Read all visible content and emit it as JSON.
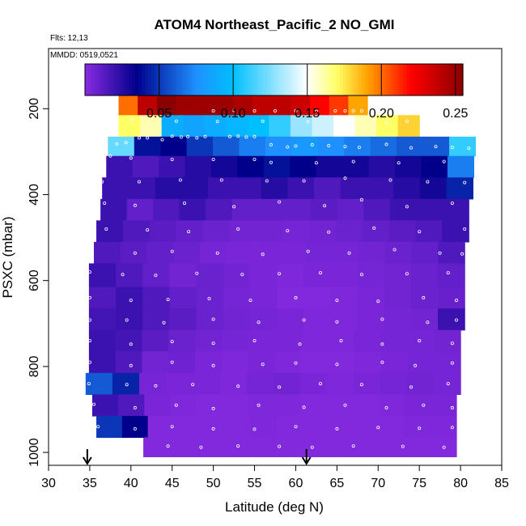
{
  "chart_data": {
    "type": "heatmap",
    "title": "ATOM4 Northeast_Pacific_2 NO_GMI",
    "flights_text": "Flts: 12,13",
    "dates_text": "MMDD: 0519,0521",
    "xlabel": "Latitude (deg N)",
    "ylabel": "PSXC (mbar)",
    "xlim": [
      30,
      85
    ],
    "ylim": [
      1030,
      60
    ],
    "y_reversed": true,
    "x_ticks": [
      "30",
      "35",
      "40",
      "45",
      "50",
      "55",
      "60",
      "65",
      "70",
      "75",
      "80",
      "85"
    ],
    "y_ticks": [
      "200",
      "400",
      "600",
      "800",
      "1000"
    ],
    "colorbar": {
      "min": 0.0,
      "max": 0.255,
      "ticks": [
        "0.05",
        "0.10",
        "0.15",
        "0.20",
        "0.25"
      ],
      "colors": [
        "#8a2be2",
        "#00008b",
        "#1e90ff",
        "#00bfff",
        "#ffffff",
        "#ffff66",
        "#ffa500",
        "#ff0000",
        "#8b0000"
      ]
    },
    "arrows_latitude": [
      34.7,
      61.3
    ],
    "layers": [
      {
        "p_top": 170,
        "p_bot": 215,
        "lat_min": 38.5,
        "lat_max": 68.7,
        "values": [
          0.2,
          0.24,
          0.255,
          0.25,
          0.25,
          0.25,
          0.245,
          0.24,
          0.24,
          0.235,
          0.22,
          0.21,
          0.19
        ]
      },
      {
        "p_top": 215,
        "p_bot": 265,
        "lat_min": 38.5,
        "lat_max": 75.0,
        "values": [
          0.17,
          0.16,
          0.09,
          0.085,
          0.09,
          0.095,
          0.1,
          0.11,
          0.13,
          0.14,
          0.15,
          0.16,
          0.17,
          0.18
        ]
      },
      {
        "p_top": 265,
        "p_bot": 310,
        "lat_min": 37.2,
        "lat_max": 81.8,
        "values": [
          0.12,
          0.04,
          0.035,
          0.05,
          0.06,
          0.07,
          0.075,
          0.08,
          0.075,
          0.07,
          0.065,
          0.06,
          0.06,
          0.11
        ]
      },
      {
        "p_top": 310,
        "p_bot": 360,
        "lat_min": 37.0,
        "lat_max": 81.6,
        "values": [
          0.02,
          0.015,
          0.02,
          0.025,
          0.03,
          0.035,
          0.04,
          0.035,
          0.03,
          0.03,
          0.025,
          0.03,
          0.035,
          0.07
        ]
      },
      {
        "p_top": 360,
        "p_bot": 410,
        "lat_min": 36.5,
        "lat_max": 81.5,
        "values": [
          0.02,
          0.02,
          0.025,
          0.025,
          0.02,
          0.02,
          0.025,
          0.02,
          0.015,
          0.02,
          0.02,
          0.025,
          0.03,
          0.045
        ]
      },
      {
        "p_top": 410,
        "p_bot": 460,
        "lat_min": 36.3,
        "lat_max": 81.0,
        "values": [
          0.02,
          0.01,
          0.015,
          0.02,
          0.015,
          0.01,
          0.01,
          0.01,
          0.012,
          0.01,
          0.015,
          0.02,
          0.02,
          0.02
        ]
      },
      {
        "p_top": 460,
        "p_bot": 510,
        "lat_min": 35.8,
        "lat_max": 81.0,
        "values": [
          0.02,
          0.015,
          0.012,
          0.01,
          0.008,
          0.006,
          0.006,
          0.005,
          0.006,
          0.008,
          0.01,
          0.012,
          0.015,
          0.02
        ]
      },
      {
        "p_top": 510,
        "p_bot": 560,
        "lat_min": 35.5,
        "lat_max": 80.5,
        "values": [
          0.015,
          0.012,
          0.01,
          0.008,
          0.005,
          0.004,
          0.004,
          0.004,
          0.005,
          0.005,
          0.006,
          0.008,
          0.01,
          0.015
        ]
      },
      {
        "p_top": 560,
        "p_bot": 615,
        "lat_min": 34.9,
        "lat_max": 80.5,
        "values": [
          0.02,
          0.015,
          0.01,
          0.006,
          0.008,
          0.006,
          0.004,
          0.003,
          0.004,
          0.004,
          0.005,
          0.006,
          0.008,
          0.01
        ]
      },
      {
        "p_top": 615,
        "p_bot": 665,
        "lat_min": 34.9,
        "lat_max": 80.5,
        "values": [
          0.015,
          0.02,
          0.015,
          0.01,
          0.008,
          0.005,
          0.004,
          0.002,
          0.002,
          0.003,
          0.004,
          0.006,
          0.008,
          0.009
        ]
      },
      {
        "p_top": 665,
        "p_bot": 715,
        "lat_min": 34.9,
        "lat_max": 80.5,
        "values": [
          0.018,
          0.02,
          0.015,
          0.012,
          0.008,
          0.006,
          0.005,
          0.004,
          0.003,
          0.003,
          0.004,
          0.005,
          0.006,
          0.02
        ]
      },
      {
        "p_top": 715,
        "p_bot": 765,
        "lat_min": 34.9,
        "lat_max": 80.0,
        "values": [
          0.02,
          0.018,
          0.012,
          0.008,
          0.006,
          0.005,
          0.004,
          0.004,
          0.003,
          0.003,
          0.004,
          0.005,
          0.005,
          0.006
        ]
      },
      {
        "p_top": 765,
        "p_bot": 815,
        "lat_min": 34.9,
        "lat_max": 80.0,
        "values": [
          0.02,
          0.015,
          0.006,
          0.007,
          0.004,
          0.003,
          0.004,
          0.003,
          0.002,
          0.002,
          0.003,
          0.004,
          0.005,
          0.005
        ]
      },
      {
        "p_top": 815,
        "p_bot": 865,
        "lat_min": 34.5,
        "lat_max": 80.0,
        "values": [
          0.06,
          0.045,
          0.005,
          0.004,
          0.004,
          0.003,
          0.005,
          0.006,
          0.004,
          0.003,
          0.004,
          0.005,
          0.006,
          0.005
        ]
      },
      {
        "p_top": 865,
        "p_bot": 915,
        "lat_min": 35.3,
        "lat_max": 79.5,
        "values": [
          0.02,
          0.015,
          0.004,
          0.003,
          0.002,
          0.002,
          0.003,
          0.003,
          0.002,
          0.002,
          0.002,
          0.003,
          0.004,
          0.004
        ]
      },
      {
        "p_top": 915,
        "p_bot": 965,
        "lat_min": 35.8,
        "lat_max": 79.5,
        "values": [
          0.05,
          0.035,
          0.002,
          0.002,
          0.002,
          0.002,
          0.003,
          0.002,
          0.002,
          0.002,
          0.002,
          0.002,
          0.003,
          0.003
        ]
      },
      {
        "p_top": 965,
        "p_bot": 1010,
        "lat_min": 41.5,
        "lat_max": 79.5,
        "values": [
          0.002,
          0.002,
          0.002,
          0.002,
          0.002,
          0.002,
          0.002,
          0.002,
          0.002,
          0.002,
          0.002,
          0.002
        ]
      }
    ],
    "sample_points": [
      [
        36.2,
        275
      ],
      [
        38.3,
        282
      ],
      [
        39.4,
        279
      ],
      [
        41.0,
        268
      ],
      [
        42.0,
        268
      ],
      [
        43.8,
        272
      ],
      [
        45.0,
        264
      ],
      [
        46.1,
        266
      ],
      [
        46.9,
        265
      ],
      [
        48.0,
        268
      ],
      [
        49.0,
        265
      ],
      [
        52.0,
        265
      ],
      [
        53.0,
        264
      ],
      [
        54.0,
        266
      ],
      [
        55.0,
        265
      ],
      [
        57.0,
        284
      ],
      [
        59.0,
        289
      ],
      [
        60.0,
        287
      ],
      [
        62.0,
        284
      ],
      [
        64.0,
        286
      ],
      [
        66.0,
        288
      ],
      [
        67.7,
        290
      ],
      [
        71.0,
        283
      ],
      [
        74.0,
        291
      ],
      [
        77.0,
        288
      ],
      [
        79.0,
        290
      ],
      [
        81.0,
        292
      ],
      [
        50.0,
        205
      ],
      [
        52.5,
        204
      ],
      [
        55.0,
        205
      ],
      [
        57.5,
        205
      ],
      [
        60.0,
        205
      ],
      [
        62.5,
        206
      ],
      [
        64.8,
        205
      ],
      [
        66.0,
        205
      ],
      [
        67.0,
        205
      ],
      [
        68.0,
        205
      ],
      [
        69.0,
        205
      ],
      [
        40.1,
        226
      ],
      [
        45.5,
        229
      ],
      [
        50.5,
        230
      ],
      [
        56.0,
        229
      ],
      [
        61.5,
        230
      ],
      [
        66.5,
        230
      ],
      [
        69.5,
        228
      ],
      [
        71.0,
        232
      ],
      [
        73.5,
        229
      ],
      [
        37.5,
        310
      ],
      [
        40.0,
        315
      ],
      [
        45.0,
        318
      ],
      [
        50.0,
        318
      ],
      [
        55.0,
        318
      ],
      [
        57.0,
        325
      ],
      [
        62.5,
        326
      ],
      [
        67.0,
        323
      ],
      [
        72.5,
        326
      ],
      [
        78.0,
        323
      ],
      [
        36.5,
        370
      ],
      [
        41.0,
        370
      ],
      [
        46.0,
        366
      ],
      [
        51.0,
        366
      ],
      [
        56.5,
        368
      ],
      [
        61.0,
        368
      ],
      [
        66.0,
        362
      ],
      [
        71.5,
        366
      ],
      [
        76.0,
        370
      ],
      [
        80.5,
        372
      ],
      [
        36.8,
        420
      ],
      [
        40.5,
        425
      ],
      [
        46.5,
        420
      ],
      [
        52.5,
        428
      ],
      [
        58.0,
        417
      ],
      [
        63.5,
        426
      ],
      [
        68.0,
        412
      ],
      [
        73.5,
        428
      ],
      [
        79.0,
        420
      ],
      [
        37.0,
        480
      ],
      [
        42.0,
        482
      ],
      [
        47.0,
        486
      ],
      [
        53.0,
        480
      ],
      [
        59.0,
        484
      ],
      [
        64.0,
        487
      ],
      [
        69.5,
        478
      ],
      [
        75.0,
        486
      ],
      [
        80.5,
        480
      ],
      [
        35.2,
        532
      ],
      [
        40.5,
        536
      ],
      [
        45.0,
        532
      ],
      [
        50.5,
        536
      ],
      [
        56.0,
        539
      ],
      [
        61.5,
        532
      ],
      [
        66.5,
        536
      ],
      [
        72.0,
        528
      ],
      [
        77.5,
        536
      ],
      [
        80.2,
        538
      ],
      [
        35.0,
        580
      ],
      [
        39.0,
        586
      ],
      [
        43.0,
        588
      ],
      [
        48.0,
        583
      ],
      [
        53.5,
        586
      ],
      [
        58.0,
        584
      ],
      [
        63.0,
        582
      ],
      [
        68.0,
        586
      ],
      [
        73.5,
        584
      ],
      [
        78.5,
        582
      ],
      [
        35.0,
        640
      ],
      [
        40.0,
        646
      ],
      [
        44.5,
        644
      ],
      [
        49.5,
        642
      ],
      [
        54.5,
        646
      ],
      [
        60.0,
        640
      ],
      [
        65.0,
        646
      ],
      [
        70.0,
        648
      ],
      [
        75.5,
        640
      ],
      [
        79.5,
        646
      ],
      [
        35.0,
        692
      ],
      [
        39.5,
        692
      ],
      [
        44.0,
        698
      ],
      [
        50.0,
        690
      ],
      [
        55.5,
        697
      ],
      [
        61.0,
        692
      ],
      [
        65.0,
        696
      ],
      [
        70.5,
        690
      ],
      [
        76.0,
        697
      ],
      [
        79.5,
        692
      ],
      [
        35.0,
        740
      ],
      [
        40.0,
        748
      ],
      [
        45.0,
        742
      ],
      [
        50.0,
        746
      ],
      [
        55.0,
        740
      ],
      [
        60.5,
        748
      ],
      [
        65.5,
        740
      ],
      [
        70.5,
        748
      ],
      [
        75.0,
        740
      ],
      [
        79.0,
        746
      ],
      [
        35.0,
        790
      ],
      [
        40.0,
        798
      ],
      [
        45.0,
        790
      ],
      [
        50.0,
        798
      ],
      [
        56.0,
        795
      ],
      [
        60.0,
        792
      ],
      [
        65.0,
        795
      ],
      [
        70.5,
        790
      ],
      [
        74.5,
        798
      ],
      [
        79.0,
        792
      ],
      [
        34.9,
        840
      ],
      [
        39.5,
        842
      ],
      [
        43.0,
        845
      ],
      [
        47.5,
        842
      ],
      [
        53.0,
        846
      ],
      [
        58.0,
        848
      ],
      [
        63.0,
        840
      ],
      [
        68.0,
        842
      ],
      [
        74.0,
        848
      ],
      [
        78.5,
        840
      ],
      [
        35.5,
        888
      ],
      [
        40.5,
        896
      ],
      [
        45.5,
        890
      ],
      [
        50.0,
        898
      ],
      [
        55.5,
        890
      ],
      [
        61.0,
        895
      ],
      [
        66.0,
        890
      ],
      [
        71.0,
        896
      ],
      [
        75.5,
        890
      ],
      [
        79.0,
        896
      ],
      [
        36.0,
        940
      ],
      [
        40.5,
        945
      ],
      [
        45.0,
        940
      ],
      [
        50.0,
        945
      ],
      [
        55.0,
        946
      ],
      [
        60.0,
        940
      ],
      [
        65.0,
        945
      ],
      [
        70.0,
        942
      ],
      [
        75.0,
        944
      ],
      [
        79.0,
        942
      ],
      [
        44.5,
        985
      ],
      [
        48.5,
        988
      ],
      [
        53.0,
        985
      ],
      [
        58.0,
        986
      ],
      [
        62.0,
        988
      ],
      [
        67.0,
        985
      ],
      [
        73.0,
        986
      ],
      [
        78.0,
        988
      ]
    ]
  }
}
